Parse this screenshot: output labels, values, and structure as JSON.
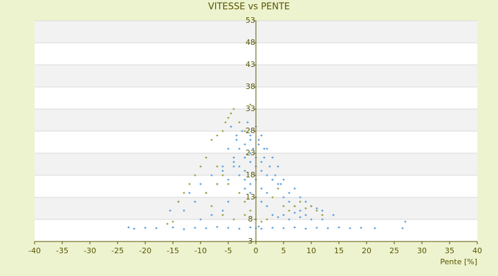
{
  "chart_data": {
    "type": "scatter",
    "title": "VITESSE vs PENTE",
    "x_label": "Pente [%]",
    "xlim": [
      -40,
      40
    ],
    "xticks": [
      -40,
      -35,
      -30,
      -25,
      -20,
      -15,
      -10,
      -5,
      0,
      5,
      10,
      15,
      20,
      25,
      30,
      35,
      40
    ],
    "ylim": [
      3,
      53
    ],
    "yticks": [
      3,
      8,
      13,
      18,
      23,
      28,
      33,
      38,
      43,
      48,
      53
    ],
    "grid": true,
    "series": [
      {
        "color": "#3d8fd6",
        "x": [
          -23,
          -22,
          -20,
          -18,
          -15,
          -13,
          -11,
          -9,
          -7,
          -5,
          -3,
          -1,
          0,
          0.5,
          1,
          3,
          5,
          7,
          9,
          11,
          13,
          15,
          17,
          19,
          21.5,
          27,
          26.5,
          -15.5,
          -14,
          -12,
          -10,
          -8,
          -6,
          -5,
          -4,
          -3.5,
          -3,
          -2.5,
          -2,
          -1.5,
          -1,
          -0.5,
          0,
          0.5,
          1,
          1.5,
          2,
          2.5,
          3,
          3.5,
          4,
          4.5,
          5,
          6,
          7,
          8,
          9,
          10,
          11,
          12,
          14,
          -4,
          -3,
          -2,
          -1,
          0,
          1,
          2,
          3,
          4,
          -3,
          -2,
          -1,
          0,
          1,
          2,
          3,
          -2,
          -1,
          0,
          1,
          2,
          -1,
          0,
          1,
          -6,
          -5,
          -4,
          5,
          6,
          7,
          8,
          -7,
          -9,
          -11,
          -13,
          2,
          3,
          4,
          5,
          6,
          7,
          8,
          9,
          10,
          12,
          -5,
          -6,
          -8,
          -10,
          -2,
          -1,
          0.5,
          1.5,
          -4.5,
          -3.5
        ],
        "values": [
          6.2,
          5.9,
          6.1,
          6.0,
          6.2,
          5.8,
          6.1,
          6.0,
          6.3,
          6.1,
          5.9,
          6.2,
          6.0,
          6.4,
          5.9,
          6.1,
          6.0,
          6.2,
          5.9,
          6.1,
          6.0,
          6.2,
          6.0,
          6.1,
          6.0,
          7.5,
          6.0,
          10,
          12,
          14,
          16,
          18,
          20,
          24,
          22,
          26,
          24,
          28,
          22,
          30,
          26,
          24,
          29,
          25,
          27,
          22,
          24,
          20,
          22,
          18,
          20,
          16,
          17,
          14,
          15,
          13,
          12,
          11,
          10.5,
          10,
          9,
          21,
          20,
          19,
          21,
          20,
          19,
          18,
          17,
          16,
          18,
          17,
          16,
          17,
          15,
          14,
          13,
          15,
          14,
          13,
          12,
          11,
          23,
          22,
          21,
          19,
          17,
          20,
          13,
          12,
          11,
          10,
          16,
          14,
          12,
          10,
          8,
          9,
          8.5,
          9,
          8,
          9.5,
          8.5,
          9,
          8,
          8,
          12,
          10,
          9,
          8,
          25,
          27,
          26,
          24,
          29,
          27
        ]
      },
      {
        "color": "#8f8f1f",
        "x": [
          -8,
          -7,
          -6,
          -5.5,
          -5,
          -4.5,
          -4,
          -3,
          -2,
          -1,
          -9,
          -10,
          -11,
          -12,
          -13,
          -14,
          -7,
          -6,
          -5,
          -3,
          -2,
          -1,
          0,
          -8,
          -6,
          -4,
          -2,
          1,
          2,
          5,
          6,
          7,
          8,
          9,
          10,
          11,
          12,
          -15,
          -16,
          -9,
          -7,
          3,
          4
        ],
        "values": [
          26,
          27,
          28,
          30,
          31,
          32,
          33,
          30,
          28,
          34,
          22,
          20,
          18,
          16,
          14,
          12,
          20,
          18,
          16,
          14,
          12,
          10,
          8,
          11,
          9,
          8,
          9,
          7.5,
          8,
          11,
          10,
          11,
          12,
          10.5,
          11,
          10,
          9,
          7.5,
          7,
          14,
          16,
          13,
          15
        ]
      }
    ]
  }
}
